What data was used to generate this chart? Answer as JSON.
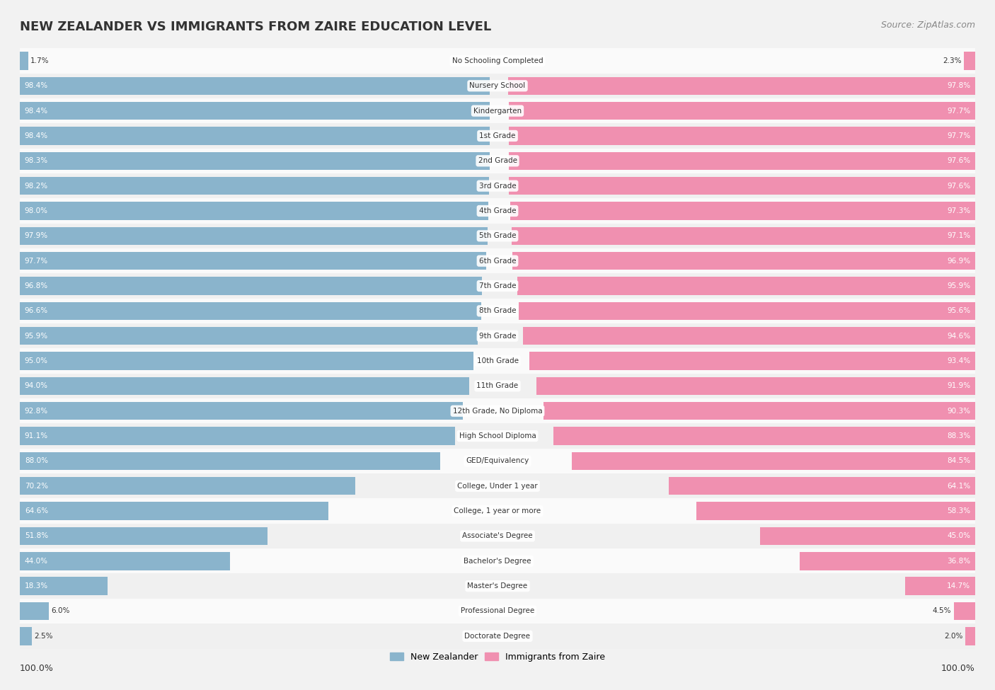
{
  "title": "NEW ZEALANDER VS IMMIGRANTS FROM ZAIRE EDUCATION LEVEL",
  "source": "Source: ZipAtlas.com",
  "categories": [
    "No Schooling Completed",
    "Nursery School",
    "Kindergarten",
    "1st Grade",
    "2nd Grade",
    "3rd Grade",
    "4th Grade",
    "5th Grade",
    "6th Grade",
    "7th Grade",
    "8th Grade",
    "9th Grade",
    "10th Grade",
    "11th Grade",
    "12th Grade, No Diploma",
    "High School Diploma",
    "GED/Equivalency",
    "College, Under 1 year",
    "College, 1 year or more",
    "Associate's Degree",
    "Bachelor's Degree",
    "Master's Degree",
    "Professional Degree",
    "Doctorate Degree"
  ],
  "nz_values": [
    1.7,
    98.4,
    98.4,
    98.4,
    98.3,
    98.2,
    98.0,
    97.9,
    97.7,
    96.8,
    96.6,
    95.9,
    95.0,
    94.0,
    92.8,
    91.1,
    88.0,
    70.2,
    64.6,
    51.8,
    44.0,
    18.3,
    6.0,
    2.5
  ],
  "zaire_values": [
    2.3,
    97.8,
    97.7,
    97.7,
    97.6,
    97.6,
    97.3,
    97.1,
    96.9,
    95.9,
    95.6,
    94.6,
    93.4,
    91.9,
    90.3,
    88.3,
    84.5,
    64.1,
    58.3,
    45.0,
    36.8,
    14.7,
    4.5,
    2.0
  ],
  "nz_color": "#8ab4cc",
  "zaire_color": "#f090b0",
  "background_color": "#f2f2f2",
  "chart_bg": "#f8f8f8",
  "row_even": "#f0f0f0",
  "row_odd": "#fafafa",
  "legend_nz": "New Zealander",
  "legend_zaire": "Immigrants from Zaire",
  "axis_label_left": "100.0%",
  "axis_label_right": "100.0%",
  "max_val": 100.0
}
